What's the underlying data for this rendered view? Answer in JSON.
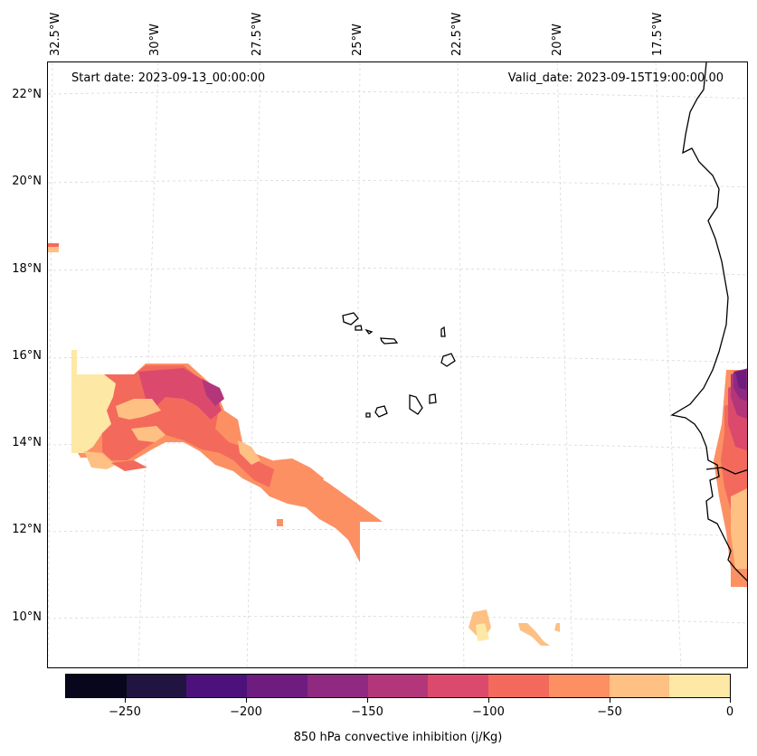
{
  "map": {
    "start_label": "Start date: 2023-09-13_00:00:00",
    "valid_label": "Valid_date: 2023-09-15T19:00:00.00",
    "lon_labels": [
      "32.5°W",
      "30°W",
      "27.5°W",
      "25°W",
      "22.5°W",
      "20°W",
      "17.5°W"
    ],
    "lat_labels": [
      "22°N",
      "20°N",
      "18°N",
      "16°N",
      "14°N",
      "12°N",
      "10°N"
    ]
  },
  "colorbar": {
    "title": "850 hPa convective inhibition (j/Kg)",
    "tick_labels": [
      "−250",
      "−200",
      "−150",
      "−100",
      "−50",
      "0"
    ],
    "levels": [
      -275,
      -250,
      -225,
      -200,
      -175,
      -150,
      -125,
      -100,
      -75,
      -50,
      -25,
      0
    ],
    "colors": [
      "#07061c",
      "#211441",
      "#4c117a",
      "#6e1c80",
      "#8f2a80",
      "#b3367a",
      "#db4a6c",
      "#f36a5c",
      "#fc9063",
      "#fec083",
      "#fde8a6"
    ]
  }
}
